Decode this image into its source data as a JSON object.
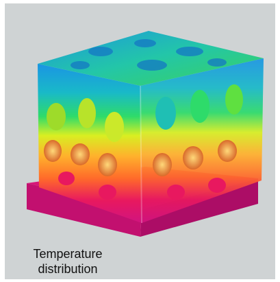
{
  "figure": {
    "caption_line1": "Temperature",
    "caption_line2": "distribution",
    "colors": {
      "background": "#cfd3d4",
      "base_plate": "#d1147f",
      "hot": "#e8185f",
      "warm": "#ff9a2a",
      "mid": "#d8ef22",
      "cool": "#2edb6a",
      "cold": "#1b95e3"
    }
  }
}
